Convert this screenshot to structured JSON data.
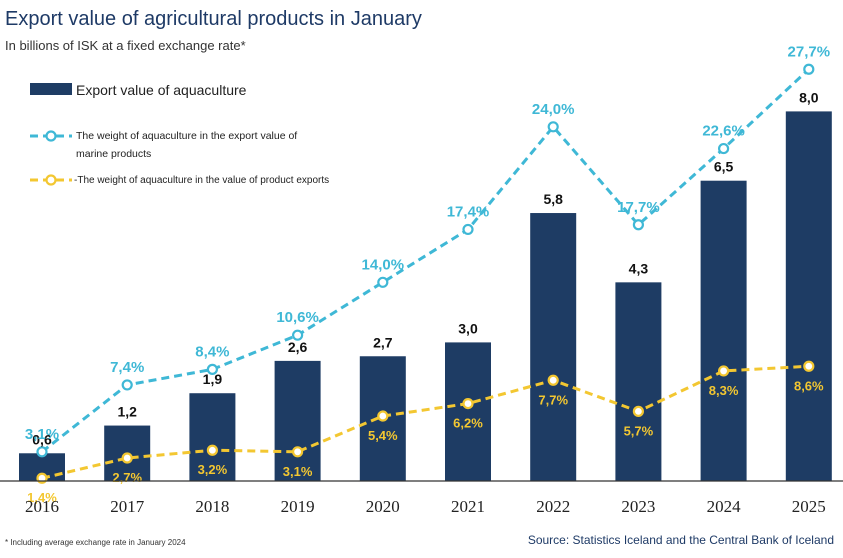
{
  "title": "Export value of agricultural products in January",
  "subtitle": "In billions of ISK at a fixed exchange rate*",
  "footnote": "* Including average exchange rate in January 2024",
  "source": "Source: Statistics Iceland and the Central Bank of Iceland",
  "colors": {
    "bar": "#1e3c64",
    "marine_line": "#3fb8d6",
    "product_line": "#f3c731",
    "axis": "#333333"
  },
  "chart_data": {
    "type": "bar",
    "categories": [
      "2016",
      "2017",
      "2018",
      "2019",
      "2020",
      "2021",
      "2022",
      "2023",
      "2024",
      "2025"
    ],
    "series": [
      {
        "name": "Export value of aquaculture",
        "type": "bar",
        "values": [
          0.6,
          1.2,
          1.9,
          2.6,
          2.7,
          3.0,
          5.8,
          4.3,
          6.5,
          8.0
        ],
        "labels": [
          "0,6",
          "1,2",
          "1,9",
          "2,6",
          "2,7",
          "3,0",
          "5,8",
          "4,3",
          "6,5",
          "8,0"
        ]
      },
      {
        "name": "The weight of aquaculture in the export value of marine products",
        "type": "line",
        "values": [
          3.1,
          7.4,
          8.4,
          10.6,
          14.0,
          17.4,
          24.0,
          17.7,
          22.6,
          27.7
        ],
        "labels": [
          "3,1%",
          "7,4%",
          "8,4%",
          "10,6%",
          "14,0%",
          "17,4%",
          "24,0%",
          "17,7%",
          "22,6%",
          "27,7%"
        ]
      },
      {
        "name": "-The weight of aquaculture in the value of product exports",
        "type": "line",
        "values": [
          1.4,
          2.7,
          3.2,
          3.1,
          5.4,
          6.2,
          7.7,
          5.7,
          8.3,
          8.6
        ],
        "labels": [
          "1,4%",
          "2,7%",
          "3,2%",
          "3,1%",
          "5,4%",
          "6,2%",
          "7,7%",
          "5,7%",
          "8,3%",
          "8,6%"
        ]
      }
    ],
    "legend": [
      "Export value of aquaculture",
      "The weight of aquaculture in the export value of marine products",
      "-The weight of aquaculture in the value of product exports"
    ],
    "legend_position": "top-left",
    "grid": false
  }
}
